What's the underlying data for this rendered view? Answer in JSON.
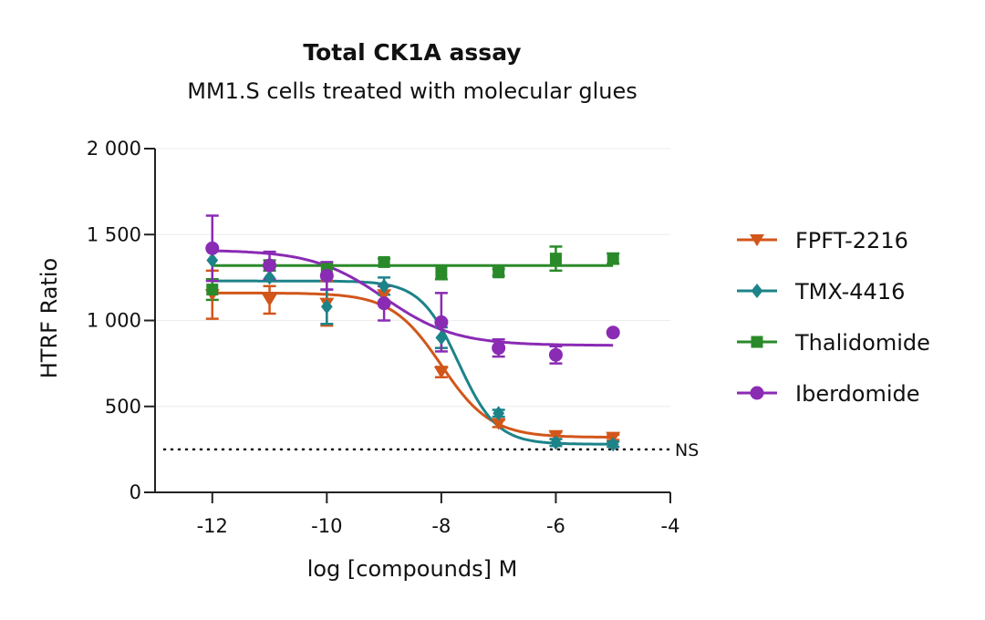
{
  "chart_data": {
    "type": "scatter",
    "title": "Total CK1A assay",
    "subtitle": "MM1.S cells treated with molecular glues",
    "xlabel": "log [compounds] M",
    "ylabel": "HTRF Ratio",
    "xlim": [
      -13,
      -4
    ],
    "ylim": [
      0,
      2000
    ],
    "x_ticks": [
      {
        "value": -12,
        "label": "-12"
      },
      {
        "value": -10,
        "label": "-10"
      },
      {
        "value": -8,
        "label": "-8"
      },
      {
        "value": -6,
        "label": "-6"
      },
      {
        "value": -4,
        "label": "-4"
      }
    ],
    "y_ticks": [
      {
        "value": 0,
        "label": "0"
      },
      {
        "value": 500,
        "label": "500"
      },
      {
        "value": 1000,
        "label": "1 000"
      },
      {
        "value": 1500,
        "label": "1 500"
      },
      {
        "value": 2000,
        "label": "2 000"
      }
    ],
    "grid": "horizontal",
    "legend_position": "right",
    "reference_line": {
      "y": 250,
      "label": "NS",
      "style": "dotted"
    },
    "series": [
      {
        "name": "FPFT-2216",
        "color": "#D2561A",
        "marker": "triangle-down",
        "points": [
          {
            "x": -12,
            "y": 1150,
            "err": 140
          },
          {
            "x": -11,
            "y": 1120,
            "err": 80
          },
          {
            "x": -10,
            "y": 1100,
            "err": 130
          },
          {
            "x": -9,
            "y": 1150,
            "err": 50
          },
          {
            "x": -8,
            "y": 700,
            "err": 30
          },
          {
            "x": -7,
            "y": 400,
            "err": 20
          },
          {
            "x": -6,
            "y": 330,
            "err": 20
          },
          {
            "x": -5,
            "y": 320,
            "err": 15
          }
        ],
        "curve": {
          "top": 1160,
          "bottom": 320,
          "log_ec50": -8.0,
          "hill": 1.0
        }
      },
      {
        "name": "TMX-4416",
        "color": "#1C8389",
        "marker": "diamond",
        "points": [
          {
            "x": -12,
            "y": 1350,
            "err": 0
          },
          {
            "x": -11,
            "y": 1250,
            "err": 0
          },
          {
            "x": -10,
            "y": 1080,
            "err": 100
          },
          {
            "x": -9,
            "y": 1200,
            "err": 50
          },
          {
            "x": -8,
            "y": 900,
            "err": 60
          },
          {
            "x": -7,
            "y": 460,
            "err": 20
          },
          {
            "x": -6,
            "y": 290,
            "err": 20
          },
          {
            "x": -5,
            "y": 280,
            "err": 15
          }
        ],
        "curve": {
          "top": 1230,
          "bottom": 280,
          "log_ec50": -7.7,
          "hill": 1.3
        }
      },
      {
        "name": "Thalidomide",
        "color": "#2A8A2A",
        "marker": "square",
        "points": [
          {
            "x": -12,
            "y": 1180,
            "err": 60
          },
          {
            "x": -11,
            "y": 1320,
            "err": 30
          },
          {
            "x": -10,
            "y": 1300,
            "err": 30
          },
          {
            "x": -9,
            "y": 1340,
            "err": 20
          },
          {
            "x": -8,
            "y": 1280,
            "err": 40
          },
          {
            "x": -7,
            "y": 1280,
            "err": 20
          },
          {
            "x": -6,
            "y": 1360,
            "err": 70
          },
          {
            "x": -5,
            "y": 1360,
            "err": 30
          }
        ],
        "curve": {
          "top": 1320,
          "bottom": 1320,
          "log_ec50": -9.0,
          "hill": 1.0
        }
      },
      {
        "name": "Iberdomide",
        "color": "#8A2BB4",
        "marker": "circle",
        "points": [
          {
            "x": -12,
            "y": 1420,
            "err": 190
          },
          {
            "x": -11,
            "y": 1320,
            "err": 80
          },
          {
            "x": -10,
            "y": 1260,
            "err": 80
          },
          {
            "x": -9,
            "y": 1100,
            "err": 100
          },
          {
            "x": -8,
            "y": 990,
            "err": 170
          },
          {
            "x": -7,
            "y": 840,
            "err": 50
          },
          {
            "x": -6,
            "y": 800,
            "err": 50
          },
          {
            "x": -5,
            "y": 930,
            "err": 0
          }
        ],
        "curve": {
          "top": 1410,
          "bottom": 855,
          "log_ec50": -9.0,
          "hill": 0.7
        }
      }
    ]
  }
}
